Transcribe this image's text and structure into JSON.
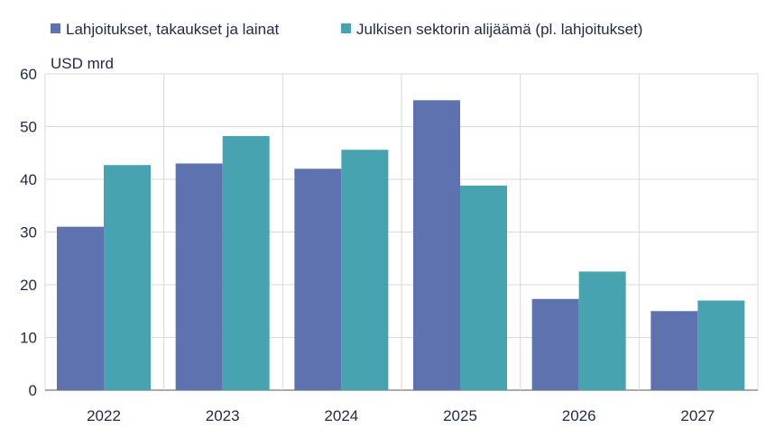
{
  "chart_data": {
    "type": "bar",
    "categories": [
      "2022",
      "2023",
      "2024",
      "2025",
      "2026",
      "2027"
    ],
    "series": [
      {
        "name": "Lahjoitukset, takaukset ja lainat",
        "color": "#5e72b0",
        "values": [
          31,
          43,
          42,
          55,
          17.3,
          15
        ]
      },
      {
        "name": "Julkisen sektorin alijäämä (pl. lahjoitukset)",
        "color": "#48a3b0",
        "values": [
          42.7,
          48.2,
          45.6,
          38.8,
          22.5,
          17
        ]
      }
    ],
    "ylabel": "USD mrd",
    "ylim": [
      0,
      60
    ],
    "yticks": [
      0,
      10,
      20,
      30,
      40,
      50,
      60
    ],
    "grid": true,
    "legend_position": "top-left"
  }
}
